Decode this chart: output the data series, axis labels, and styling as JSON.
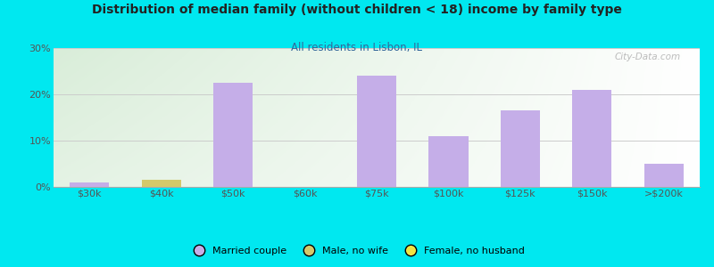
{
  "title": "Distribution of median family (without children < 18) income by family type",
  "subtitle": "All residents in Lisbon, IL",
  "categories": [
    "$30k",
    "$40k",
    "$50k",
    "$60k",
    "$75k",
    "$100k",
    "$125k",
    "$150k",
    ">$200k"
  ],
  "married_couple": [
    1.0,
    0.0,
    22.5,
    0.0,
    24.0,
    11.0,
    16.5,
    21.0,
    5.0
  ],
  "male_no_wife": [
    0.0,
    1.5,
    0.0,
    0.0,
    0.0,
    0.0,
    0.0,
    0.0,
    0.0
  ],
  "female_no_husband": [
    0.0,
    0.0,
    0.0,
    0.0,
    0.0,
    0.0,
    0.0,
    0.0,
    0.0
  ],
  "married_color": "#c5aee8",
  "male_color": "#d4c96a",
  "female_color": "#f0e442",
  "bg_outer": "#00e8f0",
  "grid_color": "#cccccc",
  "ylim": [
    0,
    30
  ],
  "yticks": [
    0,
    10,
    20,
    30
  ],
  "ytick_labels": [
    "0%",
    "10%",
    "20%",
    "30%"
  ],
  "watermark": "City-Data.com",
  "bar_width": 0.55,
  "grad_top_color": "#c8e6c9",
  "grad_bottom_color": "#f0f8f0",
  "grad_right_color": "#ffffff"
}
